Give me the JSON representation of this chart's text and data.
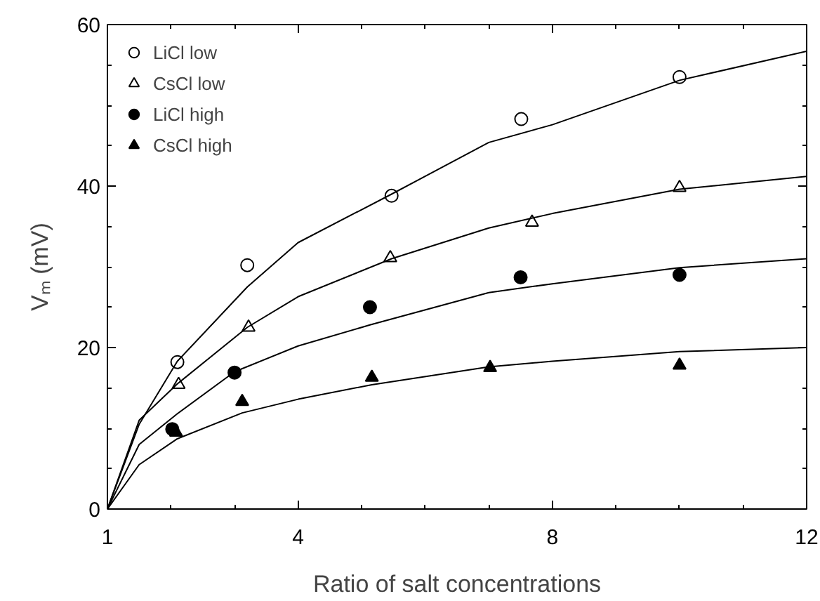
{
  "chart_data": {
    "type": "scatter",
    "xlabel": "Ratio of salt concentrations",
    "ylabel": "Vₘ (mV)",
    "xlim": [
      1,
      12
    ],
    "ylim": [
      0,
      60
    ],
    "xticks": [
      1,
      4,
      8,
      12
    ],
    "yticks": [
      0,
      20,
      40,
      60
    ],
    "grid": false,
    "legend": "top left",
    "series": [
      {
        "name": "LiCl low",
        "color": "#ffffff",
        "marker": "circle",
        "x": [
          2.1,
          3.2,
          5.47,
          7.51,
          10.0
        ],
        "values": [
          18.2,
          30.2,
          38.8,
          48.3,
          53.5
        ]
      },
      {
        "name": "CsCl low",
        "color": "#ffffff",
        "marker": "triangle",
        "x": [
          2.12,
          3.22,
          5.45,
          7.68,
          10.0
        ],
        "values": [
          15.4,
          22.5,
          31.1,
          35.5,
          39.8
        ]
      },
      {
        "name": "LiCl high",
        "color": "#000000",
        "marker": "circle",
        "x": [
          2.02,
          3.0,
          5.13,
          7.5,
          10.0
        ],
        "values": [
          9.9,
          16.9,
          25.0,
          28.7,
          29.0
        ]
      },
      {
        "name": "CsCl high",
        "color": "#000000",
        "marker": "triangle",
        "x": [
          2.08,
          3.12,
          5.16,
          7.02,
          10.0
        ],
        "values": [
          9.5,
          13.3,
          16.3,
          17.5,
          17.8
        ]
      },
      {
        "type": "line",
        "color": "#000000",
        "x": [
          1,
          1.5,
          2.1,
          3.2,
          4,
          5.47,
          7,
          8,
          10,
          12
        ],
        "values": [
          0,
          10.5,
          18.3,
          27.5,
          33.0,
          39.0,
          45.4,
          47.6,
          53.1,
          56.7
        ]
      },
      {
        "type": "line",
        "color": "#000000",
        "x": [
          1,
          1.5,
          2.1,
          3.2,
          4,
          5.47,
          7,
          8,
          10,
          12
        ],
        "values": [
          0,
          11.0,
          15.5,
          22.5,
          26.3,
          31.0,
          34.8,
          36.6,
          39.6,
          41.2
        ]
      },
      {
        "type": "line",
        "color": "#000000",
        "x": [
          1,
          1.5,
          2.1,
          3,
          4,
          5.13,
          7,
          8,
          10,
          12
        ],
        "values": [
          0,
          8.0,
          11.8,
          17.0,
          20.2,
          22.8,
          26.8,
          27.9,
          29.9,
          31.0
        ]
      },
      {
        "type": "line",
        "color": "#000000",
        "x": [
          1,
          1.5,
          2.1,
          3.12,
          4,
          5.16,
          7,
          8,
          10,
          12
        ],
        "values": [
          0,
          5.5,
          8.7,
          11.9,
          13.6,
          15.4,
          17.6,
          18.3,
          19.5,
          20.0
        ]
      }
    ]
  }
}
